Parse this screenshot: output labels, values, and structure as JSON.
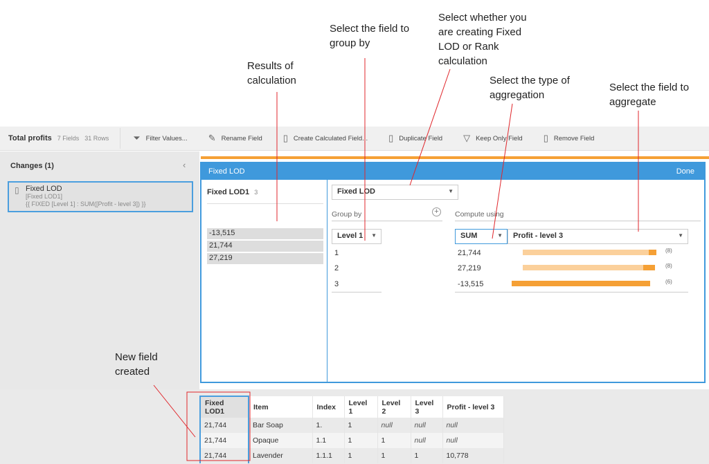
{
  "annotations": {
    "results": "Results of calculation",
    "group_by": "Select the field to group by",
    "lod_type": "Select whether you are creating Fixed LOD or Rank calculation",
    "agg_type": "Select the type of aggregation",
    "agg_field": "Select the field to aggregate",
    "new_field": "New field created"
  },
  "toolbar": {
    "title": "Total profits",
    "fields": "7 Fields",
    "rows": "31 Rows",
    "actions": [
      "Filter Values...",
      "Rename Field",
      "Create Calculated Field...",
      "Duplicate Field",
      "Keep Only Field",
      "Remove Field"
    ]
  },
  "sidebar": {
    "changes": "Changes (1)",
    "card": {
      "name": "Fixed LOD",
      "field": "[Fixed LOD1]",
      "formula": "{{ FIXED [Level 1] : SUM([Profit - level 3]) }}"
    }
  },
  "panel": {
    "title": "Fixed LOD",
    "done": "Done",
    "field_name": "Fixed LOD1",
    "field_count": "3",
    "results": [
      "-13,515",
      "21,744",
      "27,219"
    ],
    "calc_type": "Fixed LOD",
    "group_by_label": "Group by",
    "group_field": "Level 1",
    "group_values": [
      "1",
      "2",
      "3"
    ],
    "compute_label": "Compute using",
    "aggregation": "SUM",
    "agg_field": "Profit - level 3",
    "compute_rows": [
      {
        "value": "21,744",
        "count": "(8)"
      },
      {
        "value": "27,219",
        "count": "(8)"
      },
      {
        "value": "-13,515",
        "count": "(6)"
      }
    ],
    "colors": {
      "accent": "#3f99dc",
      "bar_light": "#fbd09b",
      "bar_dark": "#f5a035"
    }
  },
  "grid": {
    "columns": [
      "Fixed LOD1",
      "Item",
      "Index",
      "Level 1",
      "Level 2",
      "Level 3",
      "Profit - level 3"
    ],
    "rows": [
      [
        "21,744",
        "Bar Soap",
        "1.",
        "1",
        "null",
        "null",
        "null"
      ],
      [
        "21,744",
        "Opaque",
        "1.1",
        "1",
        "1",
        "null",
        "null"
      ],
      [
        "21,744",
        "Lavender",
        "1.1.1",
        "1",
        "1",
        "1",
        "10,778"
      ]
    ]
  }
}
